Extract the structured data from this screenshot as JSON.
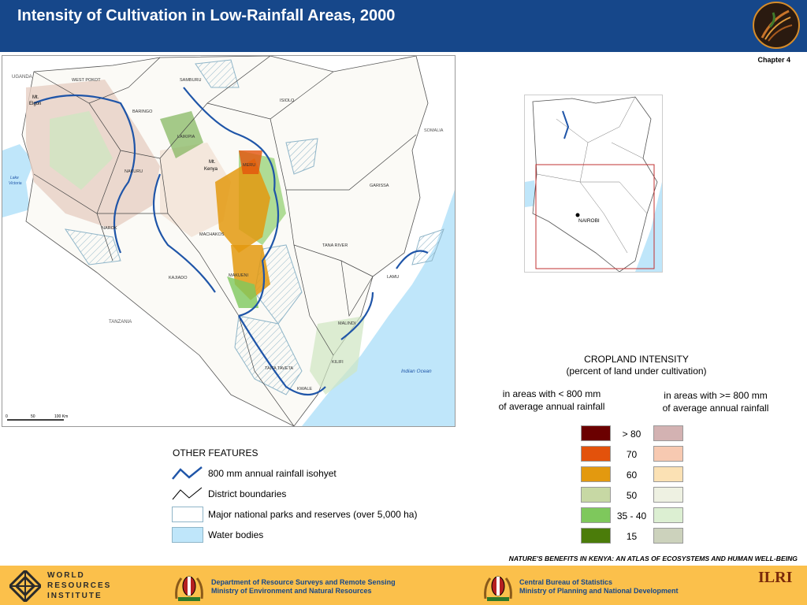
{
  "header": {
    "title": "Intensity of Cultivation in Low-Rainfall Areas, 2000",
    "chapter": "Chapter 4"
  },
  "map": {
    "labels": [
      "UGANDA",
      "WEST POKOT",
      "SAMBURU",
      "Mt.",
      "Elgon",
      "BARINGO",
      "ISIOLO",
      "SOMALIA",
      "LAIKIPIA",
      "Mt.",
      "Kenya",
      "NAKURU",
      "MERU",
      "Lake",
      "Victoria",
      "GARISSA",
      "NAROK",
      "MACHAKOS",
      "TANA RIVER",
      "KAJIADO",
      "MAKUENI",
      "LAMU",
      "TANZANIA",
      "MALINDI",
      "TAITA TAVETA",
      "KILIFI",
      "Indian Ocean",
      "KWALE"
    ],
    "scale": [
      "0",
      "50",
      "100 Km"
    ]
  },
  "inset": {
    "label": "NAIROBI"
  },
  "legend": {
    "title_line1": "CROPLAND INTENSITY",
    "title_line2": "(percent of land under cultivation)",
    "col_low_line1": "in areas with < 800 mm",
    "col_low_line2": "of average annual rainfall",
    "col_high_line1": "in areas with >= 800 mm",
    "col_high_line2": "of average annual rainfall",
    "classes": [
      {
        "label": "> 80",
        "low_color": "#6b0000",
        "high_color": "#d3b2b2"
      },
      {
        "label": "70",
        "low_color": "#e3520b",
        "high_color": "#f7c9b1"
      },
      {
        "label": "60",
        "low_color": "#e3990f",
        "high_color": "#fbe1b4"
      },
      {
        "label": "50",
        "low_color": "#c7d8a4",
        "high_color": "#eef1e2"
      },
      {
        "label": "35 - 40",
        "low_color": "#7ec85c",
        "high_color": "#dcefd2"
      },
      {
        "label": "15",
        "low_color": "#4b7c0a",
        "high_color": "#ccd2bc"
      }
    ]
  },
  "other_features": {
    "title": "OTHER FEATURES",
    "items": [
      {
        "label": "800 mm annual rainfall isohyet"
      },
      {
        "label": "District boundaries"
      },
      {
        "label": "Major national parks and reserves (over 5,000 ha)"
      },
      {
        "label": "Water bodies"
      }
    ]
  },
  "footer": {
    "caption": "NATURE'S BENEFITS IN KENYA: AN ATLAS OF ECOSYSTEMS AND HUMAN WELL-BEING",
    "wri_line1": "WORLD",
    "wri_line2": "RESOURCES",
    "wri_line3": "INSTITUTE",
    "dept_line1": "Department of Resource Surveys and Remote Sensing",
    "dept_line2": "Ministry of Environment and Natural Resources",
    "cbs_line1": "Central Bureau of Statistics",
    "cbs_line2": "Ministry of Planning and National Development",
    "ilri": "ILRI"
  },
  "colors": {
    "header_bg": "#16478a",
    "footer_bg": "#fbc04b",
    "water": "#bfe6fa",
    "isohyet": "#1f55a8"
  }
}
